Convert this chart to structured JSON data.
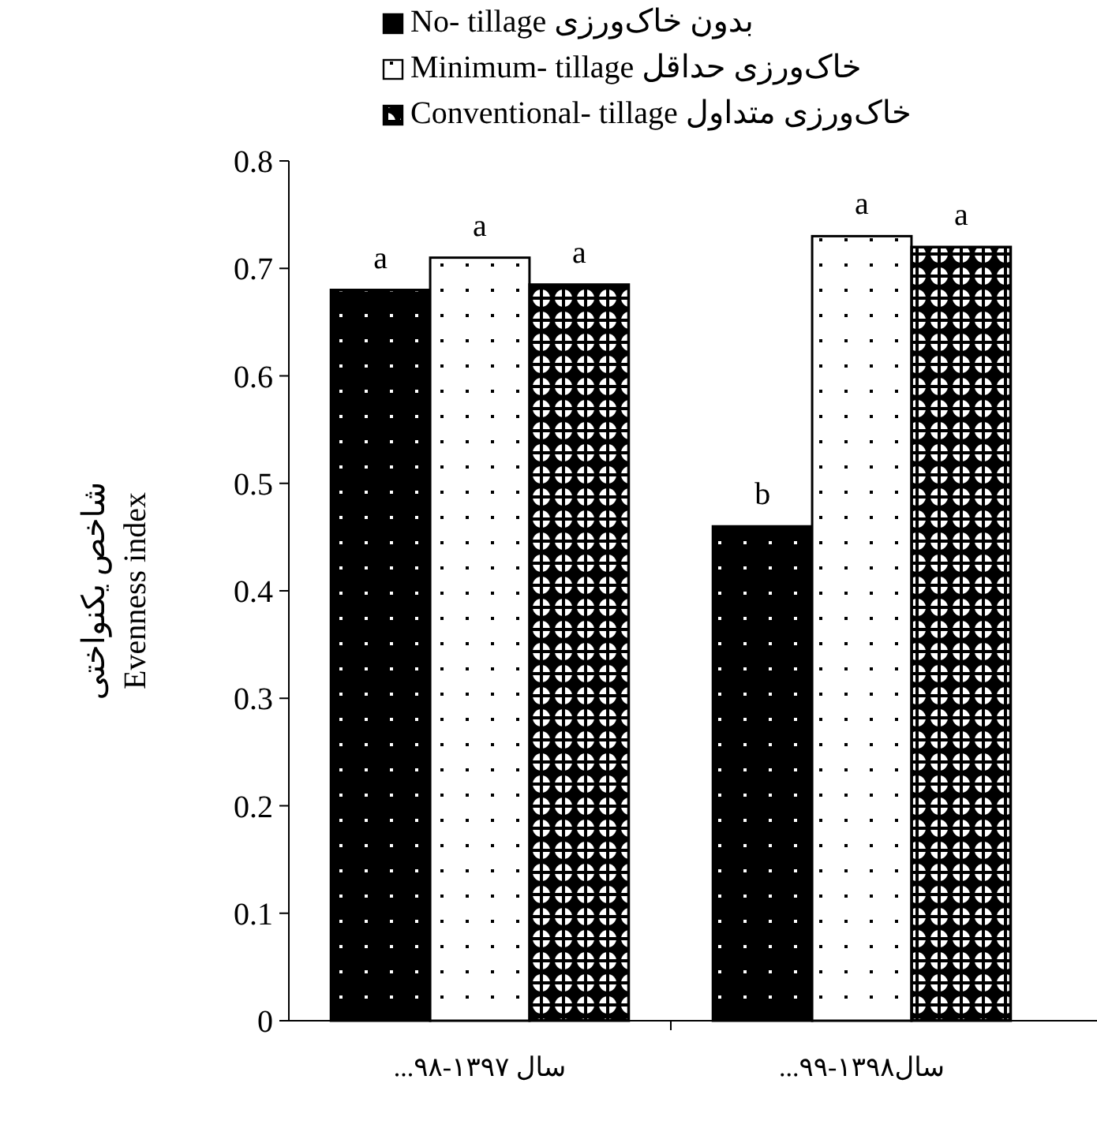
{
  "chart_data": {
    "type": "bar",
    "ylabel": "شاخص یکنواختی\nEvenness index",
    "categories": [
      "سال ۱۳۹۷-۹۸...",
      "سال۱۳۹۸-۹۹..."
    ],
    "series": [
      {
        "name": "No- tillage بدون خاک‌ورزی",
        "color": "#000000",
        "values": [
          0.68,
          0.46
        ],
        "value_labels": [
          "a",
          "b"
        ]
      },
      {
        "name": "Minimum- tillage خاک‌ورزی حداقل",
        "color": "#ffffff",
        "values": [
          0.71,
          0.73
        ],
        "value_labels": [
          "a",
          "a"
        ]
      },
      {
        "name": "Conventional- tillage خاک‌ورزی متداول",
        "color": "#000000",
        "values": [
          0.685,
          0.72
        ],
        "value_labels": [
          "a",
          "a"
        ]
      }
    ],
    "ylim": [
      0,
      0.8
    ],
    "yticks": [
      0,
      0.1,
      0.2,
      0.3,
      0.4,
      0.5,
      0.6,
      0.7,
      0.8
    ],
    "legend": "top"
  }
}
